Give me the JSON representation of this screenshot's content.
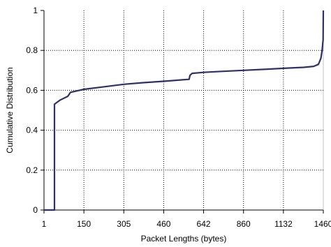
{
  "chart_data": {
    "type": "line",
    "title": "",
    "xlabel": "Packet Lengths (bytes)",
    "ylabel": "Cumulative Distribution",
    "x_scale": "categorical",
    "x_ticks": [
      "1",
      "150",
      "305",
      "460",
      "642",
      "860",
      "1132",
      "1460"
    ],
    "y_ticks": [
      "0",
      "0.2",
      "0.4",
      "0.6",
      "0.8",
      "1"
    ],
    "ylim": [
      0,
      1
    ],
    "grid": true,
    "legend": "none",
    "colors": {
      "line": "#2e3066",
      "grid": "#000000",
      "axis": "#000000",
      "background": "#ffffff"
    },
    "series": [
      {
        "points": [
          {
            "x": "1",
            "y": 0
          },
          {
            "x": "40",
            "y": 0
          },
          {
            "x": "40",
            "y": 0.53
          },
          {
            "x": "60",
            "y": 0.55
          },
          {
            "x": "90",
            "y": 0.57
          },
          {
            "x": "100",
            "y": 0.59
          },
          {
            "x": "150",
            "y": 0.605
          },
          {
            "x": "230",
            "y": 0.618
          },
          {
            "x": "305",
            "y": 0.63
          },
          {
            "x": "380",
            "y": 0.638
          },
          {
            "x": "460",
            "y": 0.645
          },
          {
            "x": "540",
            "y": 0.652
          },
          {
            "x": "576",
            "y": 0.655
          },
          {
            "x": "580",
            "y": 0.675
          },
          {
            "x": "590",
            "y": 0.685
          },
          {
            "x": "642",
            "y": 0.69
          },
          {
            "x": "750",
            "y": 0.695
          },
          {
            "x": "860",
            "y": 0.7
          },
          {
            "x": "1000",
            "y": 0.705
          },
          {
            "x": "1132",
            "y": 0.71
          },
          {
            "x": "1300",
            "y": 0.715
          },
          {
            "x": "1380",
            "y": 0.72
          },
          {
            "x": "1420",
            "y": 0.73
          },
          {
            "x": "1440",
            "y": 0.76
          },
          {
            "x": "1450",
            "y": 0.8
          },
          {
            "x": "1456",
            "y": 0.84
          },
          {
            "x": "1458",
            "y": 0.85
          },
          {
            "x": "1460",
            "y": 1.0
          }
        ]
      }
    ]
  }
}
